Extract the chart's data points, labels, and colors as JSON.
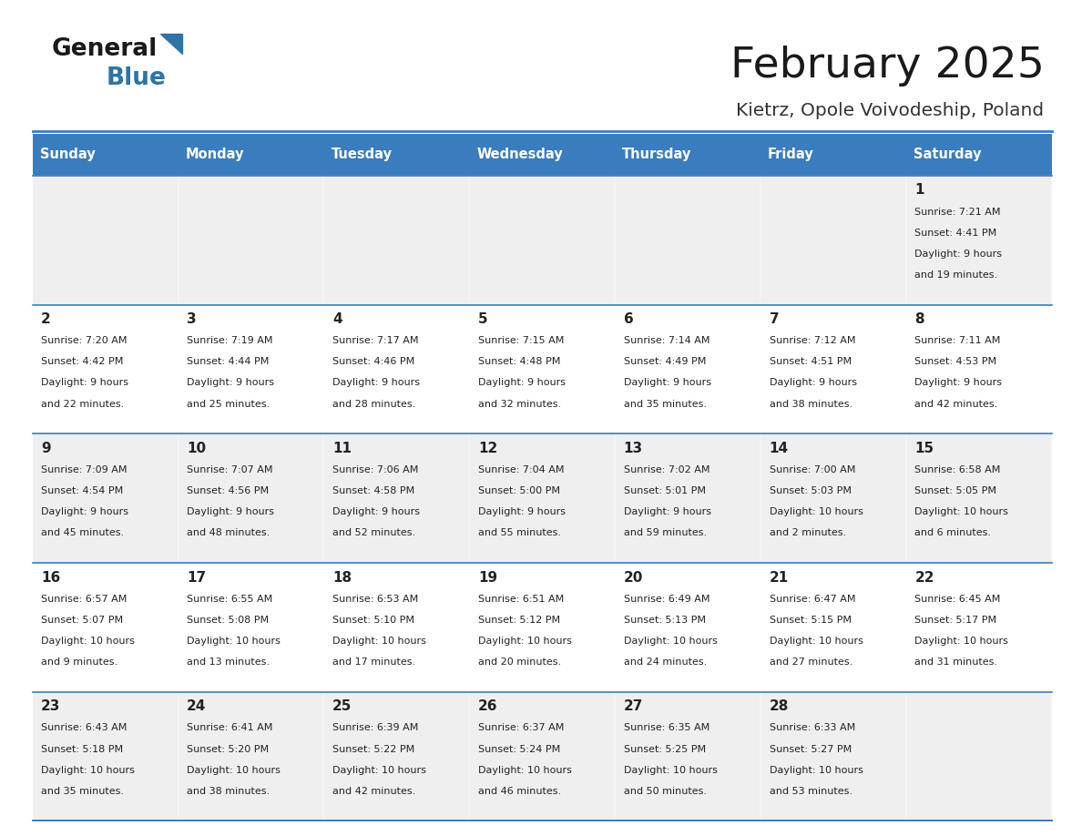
{
  "title": "February 2025",
  "subtitle": "Kietrz, Opole Voivodeship, Poland",
  "days_of_week": [
    "Sunday",
    "Monday",
    "Tuesday",
    "Wednesday",
    "Thursday",
    "Friday",
    "Saturday"
  ],
  "header_bg": "#3a7dbe",
  "header_text": "#FFFFFF",
  "row_bg_light": "#FFFFFF",
  "row_bg_dark": "#EFEFEF",
  "cell_border": "#3a7dbe",
  "text_color": "#222222",
  "title_color": "#1a1a1a",
  "subtitle_color": "#333333",
  "logo_general_color": "#1a1a1a",
  "logo_blue_color": "#2E74A8",
  "logo_triangle_color": "#2E74A8",
  "calendar_data": [
    [
      null,
      null,
      null,
      null,
      null,
      null,
      {
        "day": "1",
        "sunrise": "7:21 AM",
        "sunset": "4:41 PM",
        "daylight_line1": "Daylight: 9 hours",
        "daylight_line2": "and 19 minutes."
      }
    ],
    [
      {
        "day": "2",
        "sunrise": "7:20 AM",
        "sunset": "4:42 PM",
        "daylight_line1": "Daylight: 9 hours",
        "daylight_line2": "and 22 minutes."
      },
      {
        "day": "3",
        "sunrise": "7:19 AM",
        "sunset": "4:44 PM",
        "daylight_line1": "Daylight: 9 hours",
        "daylight_line2": "and 25 minutes."
      },
      {
        "day": "4",
        "sunrise": "7:17 AM",
        "sunset": "4:46 PM",
        "daylight_line1": "Daylight: 9 hours",
        "daylight_line2": "and 28 minutes."
      },
      {
        "day": "5",
        "sunrise": "7:15 AM",
        "sunset": "4:48 PM",
        "daylight_line1": "Daylight: 9 hours",
        "daylight_line2": "and 32 minutes."
      },
      {
        "day": "6",
        "sunrise": "7:14 AM",
        "sunset": "4:49 PM",
        "daylight_line1": "Daylight: 9 hours",
        "daylight_line2": "and 35 minutes."
      },
      {
        "day": "7",
        "sunrise": "7:12 AM",
        "sunset": "4:51 PM",
        "daylight_line1": "Daylight: 9 hours",
        "daylight_line2": "and 38 minutes."
      },
      {
        "day": "8",
        "sunrise": "7:11 AM",
        "sunset": "4:53 PM",
        "daylight_line1": "Daylight: 9 hours",
        "daylight_line2": "and 42 minutes."
      }
    ],
    [
      {
        "day": "9",
        "sunrise": "7:09 AM",
        "sunset": "4:54 PM",
        "daylight_line1": "Daylight: 9 hours",
        "daylight_line2": "and 45 minutes."
      },
      {
        "day": "10",
        "sunrise": "7:07 AM",
        "sunset": "4:56 PM",
        "daylight_line1": "Daylight: 9 hours",
        "daylight_line2": "and 48 minutes."
      },
      {
        "day": "11",
        "sunrise": "7:06 AM",
        "sunset": "4:58 PM",
        "daylight_line1": "Daylight: 9 hours",
        "daylight_line2": "and 52 minutes."
      },
      {
        "day": "12",
        "sunrise": "7:04 AM",
        "sunset": "5:00 PM",
        "daylight_line1": "Daylight: 9 hours",
        "daylight_line2": "and 55 minutes."
      },
      {
        "day": "13",
        "sunrise": "7:02 AM",
        "sunset": "5:01 PM",
        "daylight_line1": "Daylight: 9 hours",
        "daylight_line2": "and 59 minutes."
      },
      {
        "day": "14",
        "sunrise": "7:00 AM",
        "sunset": "5:03 PM",
        "daylight_line1": "Daylight: 10 hours",
        "daylight_line2": "and 2 minutes."
      },
      {
        "day": "15",
        "sunrise": "6:58 AM",
        "sunset": "5:05 PM",
        "daylight_line1": "Daylight: 10 hours",
        "daylight_line2": "and 6 minutes."
      }
    ],
    [
      {
        "day": "16",
        "sunrise": "6:57 AM",
        "sunset": "5:07 PM",
        "daylight_line1": "Daylight: 10 hours",
        "daylight_line2": "and 9 minutes."
      },
      {
        "day": "17",
        "sunrise": "6:55 AM",
        "sunset": "5:08 PM",
        "daylight_line1": "Daylight: 10 hours",
        "daylight_line2": "and 13 minutes."
      },
      {
        "day": "18",
        "sunrise": "6:53 AM",
        "sunset": "5:10 PM",
        "daylight_line1": "Daylight: 10 hours",
        "daylight_line2": "and 17 minutes."
      },
      {
        "day": "19",
        "sunrise": "6:51 AM",
        "sunset": "5:12 PM",
        "daylight_line1": "Daylight: 10 hours",
        "daylight_line2": "and 20 minutes."
      },
      {
        "day": "20",
        "sunrise": "6:49 AM",
        "sunset": "5:13 PM",
        "daylight_line1": "Daylight: 10 hours",
        "daylight_line2": "and 24 minutes."
      },
      {
        "day": "21",
        "sunrise": "6:47 AM",
        "sunset": "5:15 PM",
        "daylight_line1": "Daylight: 10 hours",
        "daylight_line2": "and 27 minutes."
      },
      {
        "day": "22",
        "sunrise": "6:45 AM",
        "sunset": "5:17 PM",
        "daylight_line1": "Daylight: 10 hours",
        "daylight_line2": "and 31 minutes."
      }
    ],
    [
      {
        "day": "23",
        "sunrise": "6:43 AM",
        "sunset": "5:18 PM",
        "daylight_line1": "Daylight: 10 hours",
        "daylight_line2": "and 35 minutes."
      },
      {
        "day": "24",
        "sunrise": "6:41 AM",
        "sunset": "5:20 PM",
        "daylight_line1": "Daylight: 10 hours",
        "daylight_line2": "and 38 minutes."
      },
      {
        "day": "25",
        "sunrise": "6:39 AM",
        "sunset": "5:22 PM",
        "daylight_line1": "Daylight: 10 hours",
        "daylight_line2": "and 42 minutes."
      },
      {
        "day": "26",
        "sunrise": "6:37 AM",
        "sunset": "5:24 PM",
        "daylight_line1": "Daylight: 10 hours",
        "daylight_line2": "and 46 minutes."
      },
      {
        "day": "27",
        "sunrise": "6:35 AM",
        "sunset": "5:25 PM",
        "daylight_line1": "Daylight: 10 hours",
        "daylight_line2": "and 50 minutes."
      },
      {
        "day": "28",
        "sunrise": "6:33 AM",
        "sunset": "5:27 PM",
        "daylight_line1": "Daylight: 10 hours",
        "daylight_line2": "and 53 minutes."
      },
      null
    ]
  ]
}
